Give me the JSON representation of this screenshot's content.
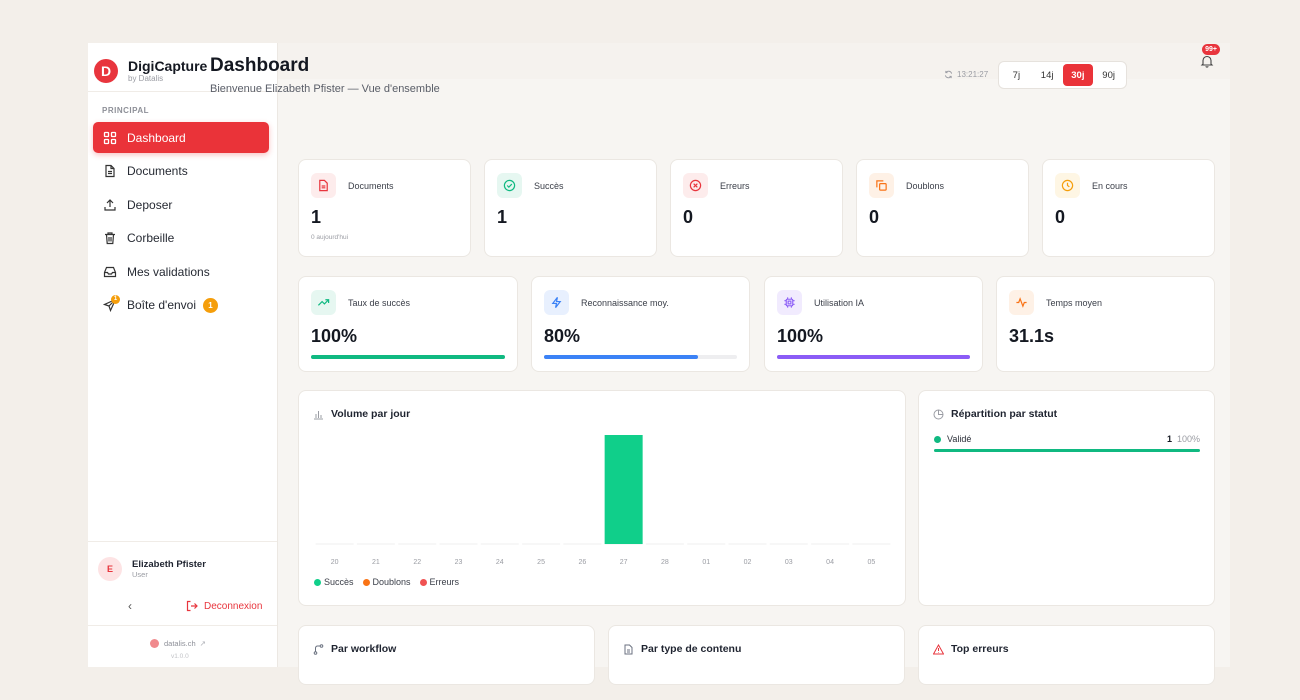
{
  "brand": {
    "name": "DigiCapture",
    "sub": "by Datalis",
    "logo_letter": "D"
  },
  "sidebar": {
    "section": "PRINCIPAL",
    "items": [
      {
        "label": "Dashboard",
        "icon": "grid-icon",
        "active": true
      },
      {
        "label": "Documents",
        "icon": "file-icon"
      },
      {
        "label": "Deposer",
        "icon": "upload-icon"
      },
      {
        "label": "Corbeille",
        "icon": "trash-icon"
      },
      {
        "label": "Mes validations",
        "icon": "inbox-icon"
      },
      {
        "label": "Boîte d'envoi",
        "icon": "send-icon",
        "badge": "1",
        "icon_badge": "1"
      }
    ],
    "user": {
      "initial": "E",
      "name": "Elizabeth Pfister",
      "role": "User"
    },
    "collapse": "‹",
    "logout": "Deconnexion",
    "footer_link": "datalis.ch",
    "version": "v1.0.0"
  },
  "topbar": {
    "notifications": "99+"
  },
  "header": {
    "title": "Dashboard",
    "subtitle": "Bienvenue Elizabeth Pfister — Vue d'ensemble",
    "refresh_time": "13:21:27",
    "ranges": [
      "7j",
      "14j",
      "30j",
      "90j"
    ],
    "active_range": "30j"
  },
  "stats": [
    {
      "label": "Documents",
      "value": "1",
      "note": "0 aujourd'hui",
      "color": "#e8353d",
      "bg": "#fdecec",
      "icon": "document-icon"
    },
    {
      "label": "Succès",
      "value": "1",
      "color": "#10b981",
      "bg": "#e6f7f1",
      "icon": "check-circle-icon"
    },
    {
      "label": "Erreurs",
      "value": "0",
      "color": "#e8353d",
      "bg": "#fdecec",
      "icon": "x-circle-icon"
    },
    {
      "label": "Doublons",
      "value": "0",
      "color": "#f97316",
      "bg": "#fef1e6",
      "icon": "copy-icon"
    },
    {
      "label": "En cours",
      "value": "0",
      "color": "#f59e0b",
      "bg": "#fef6e4",
      "icon": "clock-icon"
    }
  ],
  "metrics": [
    {
      "label": "Taux de succès",
      "value": "100%",
      "progress": 100,
      "color": "#10b981",
      "bg": "#e6f7f1",
      "icon": "trend-up-icon"
    },
    {
      "label": "Reconnaissance moy.",
      "value": "80%",
      "progress": 80,
      "color": "#3b82f6",
      "bg": "#e8f0fe",
      "icon": "zap-icon"
    },
    {
      "label": "Utilisation IA",
      "value": "100%",
      "progress": 100,
      "color": "#8b5cf6",
      "bg": "#f1ebfe",
      "icon": "chip-icon"
    },
    {
      "label": "Temps moyen",
      "value": "31.1s",
      "color": "#f97316",
      "bg": "#fef1e6",
      "icon": "activity-icon"
    }
  ],
  "volume": {
    "title": "Volume par jour",
    "legend": [
      {
        "label": "Succès",
        "color": "#10cf8a"
      },
      {
        "label": "Doublons",
        "color": "#f97316"
      },
      {
        "label": "Erreurs",
        "color": "#f05252"
      }
    ]
  },
  "chart_data": {
    "type": "bar",
    "title": "Volume par jour",
    "categories": [
      "20",
      "21",
      "22",
      "23",
      "24",
      "25",
      "26",
      "27",
      "28",
      "01",
      "02",
      "03",
      "04",
      "05"
    ],
    "series": [
      {
        "name": "Succès",
        "values": [
          0,
          0,
          0,
          0,
          0,
          0,
          0,
          1,
          0,
          0,
          0,
          0,
          0,
          0
        ]
      },
      {
        "name": "Doublons",
        "values": [
          0,
          0,
          0,
          0,
          0,
          0,
          0,
          0,
          0,
          0,
          0,
          0,
          0,
          0
        ]
      },
      {
        "name": "Erreurs",
        "values": [
          0,
          0,
          0,
          0,
          0,
          0,
          0,
          0,
          0,
          0,
          0,
          0,
          0,
          0
        ]
      }
    ],
    "ylim": [
      0,
      1
    ],
    "xlabel": "",
    "ylabel": ""
  },
  "repartition": {
    "title": "Répartition par statut",
    "rows": [
      {
        "label": "Validé",
        "count": "1",
        "percent": "100%"
      }
    ]
  },
  "bottom_cards": [
    {
      "title": "Par workflow",
      "icon": "branch-icon",
      "color": "#6b7280"
    },
    {
      "title": "Par type de contenu",
      "icon": "file-text-icon",
      "color": "#6b7280"
    },
    {
      "title": "Top erreurs",
      "icon": "warning-icon",
      "color": "#e8353d"
    }
  ]
}
